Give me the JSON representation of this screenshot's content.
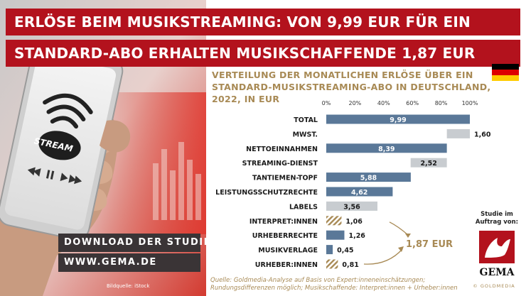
{
  "headline": {
    "line1": "ERLÖSE BEIM MUSIKSTREAMING: VON 9,99 EUR FÜR EIN",
    "line2": "STANDARD-ABO ERHALTEN MUSIKSCHAFFENDE 1,87 EUR"
  },
  "phone": {
    "stream_label": "STREAM"
  },
  "cta": {
    "line1": "DOWNLOAD DER STUDIE:",
    "line2": "WWW.GEMA.DE"
  },
  "photo_credit": "Bildquelle: iStock",
  "chart_title": {
    "line1": "VERTEILUNG DER MONATLICHEN ERLÖSE ÜBER EIN",
    "line2": "STANDARD-MUSIKSTREAMING-ABO IN DEUTSCHLAND,",
    "line3": "2022, IN EUR"
  },
  "flag": {
    "colors": [
      "#000000",
      "#dd0000",
      "#ffcc00"
    ]
  },
  "colors": {
    "blue": "#5a7898",
    "gray": "#c8ccd0",
    "gold": "#a88a55",
    "red": "#b3121d"
  },
  "chart_data": {
    "type": "bar",
    "orientation": "horizontal",
    "subtype": "waterfall",
    "unit": "EUR",
    "total_reference": 9.99,
    "x_ticks": [
      "0%",
      "20%",
      "40%",
      "60%",
      "80%",
      "100%"
    ],
    "xlim": [
      0,
      100
    ],
    "rows": [
      {
        "label": "TOTAL",
        "value": 9.99,
        "value_label": "9,99",
        "start": 0,
        "kind": "blue"
      },
      {
        "label": "MWST.",
        "value": 1.6,
        "value_label": "1,60",
        "start": 8.39,
        "kind": "gray"
      },
      {
        "label": "NETTOEINNAHMEN",
        "value": 8.39,
        "value_label": "8,39",
        "start": 0,
        "kind": "blue"
      },
      {
        "label": "STREAMING-DIENST",
        "value": 2.52,
        "value_label": "2,52",
        "start": 5.87,
        "kind": "gray"
      },
      {
        "label": "TANTIEMEN-TOPF",
        "value": 5.88,
        "value_label": "5,88",
        "start": 0,
        "kind": "blue"
      },
      {
        "label": "LEISTUNGSSCHUTZRECHTE",
        "value": 4.62,
        "value_label": "4,62",
        "start": 0,
        "kind": "blue"
      },
      {
        "label": "LABELS",
        "value": 3.56,
        "value_label": "3,56",
        "start": 0,
        "kind": "gray"
      },
      {
        "label": "INTERPRET:INNEN",
        "value": 1.06,
        "value_label": "1,06",
        "start": 0,
        "kind": "hatched"
      },
      {
        "label": "URHEBERRECHTE",
        "value": 1.26,
        "value_label": "1,26",
        "start": 0,
        "kind": "blue"
      },
      {
        "label": "MUSIKVERLAGE",
        "value": 0.45,
        "value_label": "0,45",
        "start": 0,
        "kind": "blue"
      },
      {
        "label": "URHEBER:INNEN",
        "value": 0.81,
        "value_label": "0,81",
        "start": 0,
        "kind": "hatched"
      }
    ],
    "annotation": "1,87 EUR"
  },
  "footnote": {
    "line1": "Quelle: Goldmedia-Analyse auf Basis von Expert:inneneinschätzungen;",
    "line2": "Rundungsdifferenzen möglich; Musikschaffende: Interpret:innen + Urheber:innen"
  },
  "sponsor": {
    "line1": "Studie im",
    "line2": "Auftrag von:",
    "logo_word": "GEMA"
  },
  "goldmedia": "© GOLDMEDIA"
}
